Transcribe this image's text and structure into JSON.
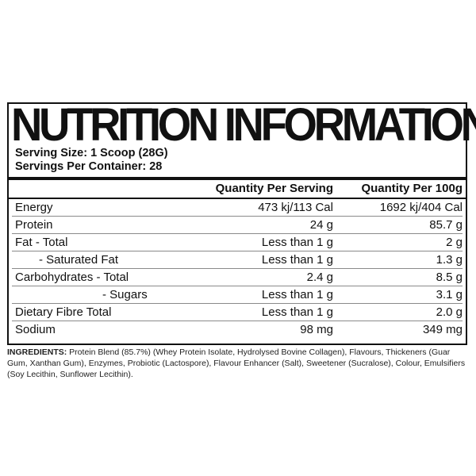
{
  "title": "NUTRITION INFORMATION",
  "serving_size": "Serving Size: 1 Scoop (28G)",
  "servings_per_container": "Servings Per Container: 28",
  "headers": {
    "per_serving": "Quantity Per Serving",
    "per_100g": "Quantity Per 100g"
  },
  "rows": [
    {
      "name": "Energy",
      "per_serving": "473 kj/113 Cal",
      "per_100g": "1692 kj/404 Cal"
    },
    {
      "name": "Protein",
      "per_serving": "24 g",
      "per_100g": "85.7 g"
    },
    {
      "name": "Fat - Total",
      "per_serving": "Less than 1 g",
      "per_100g": "2 g"
    },
    {
      "name": "- Saturated Fat",
      "per_serving": "Less than 1 g",
      "per_100g": "1.3 g"
    },
    {
      "name": "Carbohydrates - Total",
      "per_serving": "2.4 g",
      "per_100g": "8.5 g"
    },
    {
      "name": "- Sugars",
      "per_serving": "Less than 1 g",
      "per_100g": "3.1 g"
    },
    {
      "name": "Dietary Fibre Total",
      "per_serving": "Less than 1 g",
      "per_100g": "2.0 g"
    },
    {
      "name": "Sodium",
      "per_serving": "98 mg",
      "per_100g": "349 mg"
    }
  ],
  "ingredients": {
    "label": "INGREDIENTS:",
    "text": " Protein Blend (85.7%) (Whey Protein Isolate, Hydrolysed Bovine Collagen), Flavours, Thickeners (Guar Gum, Xanthan Gum), Enzymes, Probiotic (Lactospore), Flavour Enhancer (Salt), Sweetener (Sucralose), Colour, Emulsifiers (Soy Lecithin, Sunflower Lecithin)."
  }
}
